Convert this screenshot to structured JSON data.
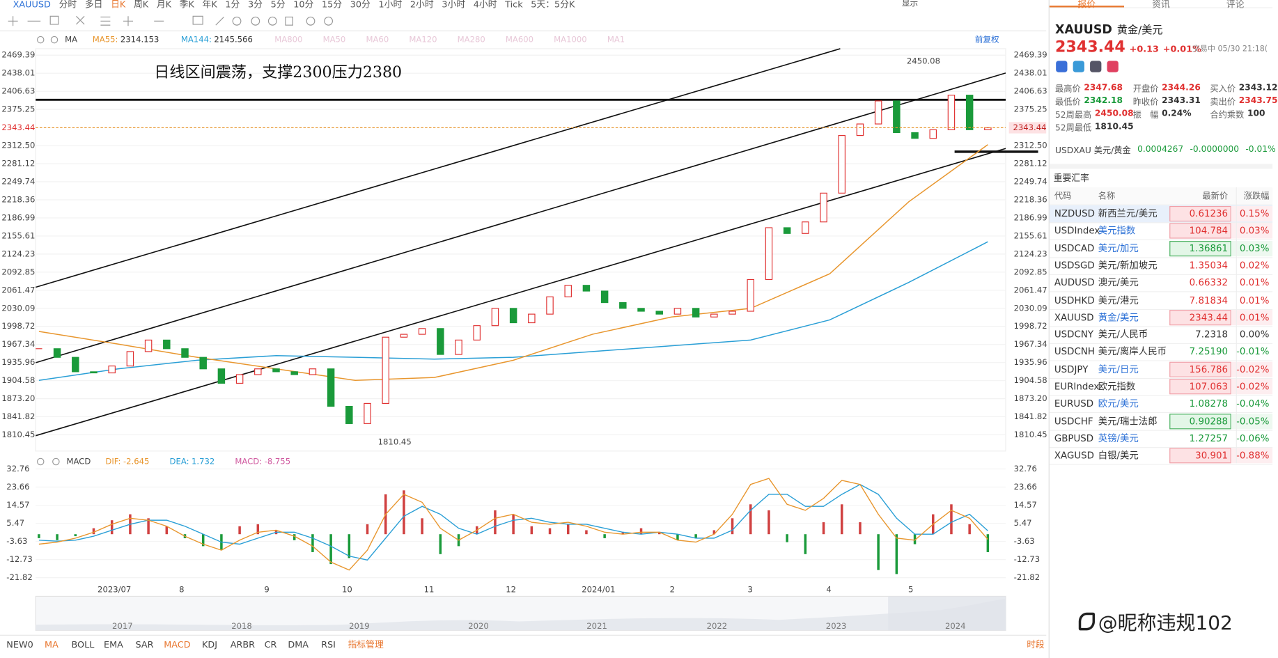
{
  "toolbar": {
    "symbol": "XAUUSD",
    "periods": [
      "分时",
      "多日",
      "日K",
      "周K",
      "月K",
      "季K",
      "年K",
      "1分",
      "3分",
      "5分",
      "10分",
      "15分",
      "30分",
      "1小时",
      "2小时",
      "3小时",
      "4小时",
      "Tick"
    ],
    "active_period": 2,
    "speed": "5天：5分K",
    "display": "显示"
  },
  "chart": {
    "ma_label": "MA",
    "ma_active": [
      {
        "name": "MA55:",
        "value": "2314.153",
        "color": "#e8962e"
      },
      {
        "name": "MA144:",
        "value": "2145.566",
        "color": "#2a9fd6"
      }
    ],
    "ma_inactive": [
      "MA800",
      "MA50",
      "MA60",
      "MA120",
      "MA280",
      "MA600",
      "MA1000",
      "MA1"
    ],
    "restore": "前复权",
    "annotation": "日线区间震荡，支撑2300压力2380",
    "price_ticks": [
      2469.39,
      2438.01,
      2406.63,
      2375.25,
      {
        "value": 2312.5,
        "label": "2312.50"
      },
      2281.12,
      2249.74,
      2218.36,
      2186.99,
      2155.61,
      2124.23,
      2092.85,
      2061.47,
      2030.09,
      1998.72,
      1967.34,
      1935.96,
      1904.58,
      {
        "value": 1873.2,
        "label": "1873.20"
      },
      1841.82,
      1810.45
    ],
    "current_price": 2343.44,
    "high": 2450.08,
    "low": 1810.45,
    "months": [
      "2023/07",
      "8",
      "9",
      "10",
      "11",
      "12",
      "2024/01",
      "2",
      "3",
      "4",
      "5"
    ],
    "closes": [
      1960,
      1945,
      1920,
      1918,
      1930,
      1955,
      1975,
      1960,
      1945,
      1925,
      1900,
      1915,
      1925,
      1920,
      1915,
      1925,
      1860,
      1830,
      1865,
      1980,
      1985,
      1995,
      1950,
      1975,
      2000,
      2030,
      2005,
      2020,
      2050,
      2070,
      2060,
      2040,
      2030,
      2025,
      2020,
      2030,
      2015,
      2020,
      2025,
      2080,
      2170,
      2160,
      2180,
      2230,
      2330,
      2350,
      2390,
      2335,
      2325,
      2340,
      2400,
      2340,
      2343.44
    ],
    "ma55": [
      1990,
      1968,
      1945,
      1925,
      1905,
      1910,
      1940,
      1985,
      2015,
      2030,
      2090,
      2215,
      2314.15
    ],
    "ma144": [
      1905,
      1925,
      1940,
      1948,
      1945,
      1942,
      1945,
      1955,
      1965,
      1975,
      2010,
      2075,
      2145.57
    ],
    "macd": {
      "label": "MACD",
      "items": [
        {
          "name": "DIF:",
          "value": "-2.645",
          "color": "#e8962e"
        },
        {
          "name": "DEA:",
          "value": "1.732",
          "color": "#2a9fd6"
        },
        {
          "name": "MACD:",
          "value": "-8.755",
          "color": "#d05aa0"
        }
      ],
      "ticks": [
        32.76,
        23.66,
        14.57,
        5.47,
        -3.63,
        -12.73,
        -21.82
      ],
      "hist": [
        -2,
        -3,
        -1,
        3,
        7,
        10,
        8,
        4,
        -2,
        -6,
        -8,
        4,
        5,
        2,
        -3,
        -9,
        -15,
        -12,
        5,
        20,
        22,
        8,
        -10,
        -6,
        4,
        12,
        10,
        4,
        3,
        5,
        2,
        -2,
        1,
        3,
        1,
        -3,
        -2,
        2,
        8,
        15,
        12,
        -4,
        -10,
        6,
        15,
        6,
        -18,
        -20,
        -5,
        10,
        15,
        5,
        -9
      ],
      "dif": [
        -5,
        -4,
        -2,
        1,
        5,
        8,
        7,
        4,
        -1,
        -5,
        -8,
        -3,
        1,
        2,
        -1,
        -6,
        -14,
        -18,
        -8,
        10,
        20,
        16,
        3,
        -3,
        2,
        8,
        10,
        6,
        5,
        6,
        4,
        1,
        0,
        1,
        1,
        -3,
        -4,
        0,
        10,
        25,
        28,
        15,
        12,
        18,
        27,
        25,
        10,
        -2,
        -3,
        5,
        12,
        8,
        -2.6
      ],
      "dea": [
        -3,
        -3.5,
        -3,
        -1,
        2,
        5,
        7,
        7,
        4,
        0,
        -4,
        -5,
        -2,
        1,
        1,
        -2,
        -6,
        -11,
        -13,
        -2,
        9,
        14,
        10,
        3,
        0,
        4,
        7,
        8,
        6,
        5,
        5,
        3,
        1,
        0,
        1,
        0,
        -2,
        -2,
        2,
        12,
        20,
        20,
        14,
        14,
        20,
        25,
        20,
        8,
        0,
        0,
        6,
        10,
        1.73
      ]
    },
    "years": [
      "2017",
      "2018",
      "2019",
      "2020",
      "2021",
      "2022",
      "2023",
      "2024"
    ],
    "indicators": [
      "NEW0",
      "MA",
      "BOLL",
      "EMA",
      "SAR",
      "MACD",
      "KDJ",
      "ARBR",
      "CR",
      "DMA",
      "RSI"
    ],
    "active_indicators": [
      1,
      5
    ],
    "manage": "指标管理",
    "session": "时段"
  },
  "quote": {
    "tabs": [
      "报价",
      "资讯",
      "评论"
    ],
    "symbol": "XAUUSD",
    "name": "黄金/美元",
    "price": "2343.44",
    "change": "+0.13",
    "pct": "+0.01%",
    "status": "交易中 05/30 21:18(",
    "stats": [
      [
        {
          "label": "最高价",
          "value": "2347.68",
          "tone": "up"
        },
        {
          "label": "开盘价",
          "value": "2344.26",
          "tone": "up"
        },
        {
          "label": "买入价",
          "value": "2343.12",
          "tone": "flat"
        }
      ],
      [
        {
          "label": "最低价",
          "value": "2342.18",
          "tone": "down"
        },
        {
          "label": "昨收价",
          "value": "2343.31",
          "tone": "flat"
        },
        {
          "label": "卖出价",
          "value": "2343.75",
          "tone": "up"
        }
      ],
      [
        {
          "label": "52周最高",
          "value": "2450.08",
          "tone": "up"
        },
        {
          "label": "振　幅",
          "value": "0.24%",
          "tone": "flat"
        },
        {
          "label": "合约乘数",
          "value": "100",
          "tone": "flat"
        }
      ],
      [
        {
          "label": "52周最低",
          "value": "1810.45",
          "tone": "flat"
        }
      ]
    ],
    "cross": {
      "name": "USDXAU 美元/黄金",
      "price": "0.0004267",
      "change": "-0.0000000",
      "pct": "-0.01%"
    }
  },
  "rates": {
    "title": "重要汇率",
    "headers": [
      "代码",
      "名称",
      "最新价",
      "涨跌幅"
    ],
    "rows": [
      [
        "NZDUSD",
        "新西兰元/美元",
        "0.61236",
        "0.15%"
      ],
      [
        "USDIndex",
        "美元指数",
        "104.784",
        "0.03%"
      ],
      [
        "USDCAD",
        "美元/加元",
        "1.36861",
        "0.03%"
      ],
      [
        "USDSGD",
        "美元/新加坡元",
        "1.35034",
        "0.02%"
      ],
      [
        "AUDUSD",
        "澳元/美元",
        "0.66332",
        "0.01%"
      ],
      [
        "USDHKD",
        "美元/港元",
        "7.81834",
        "0.01%"
      ],
      [
        "XAUUSD",
        "黄金/美元",
        "2343.44",
        "0.01%"
      ],
      [
        "USDCNY",
        "美元/人民币",
        "7.2318",
        "0.00%"
      ],
      [
        "USDCNH",
        "美元/离岸人民币",
        "7.25190",
        "-0.01%"
      ],
      [
        "USDJPY",
        "美元/日元",
        "156.786",
        "-0.02%"
      ],
      [
        "EURIndex",
        "欧元指数",
        "107.063",
        "-0.02%"
      ],
      [
        "EURUSD",
        "欧元/美元",
        "1.08278",
        "-0.04%"
      ],
      [
        "USDCHF",
        "美元/瑞士法郎",
        "0.90288",
        "-0.05%"
      ],
      [
        "GBPUSD",
        "英镑/美元",
        "1.27257",
        "-0.06%"
      ],
      [
        "XAGUSD",
        "白银/美元",
        "30.901",
        "-0.88%"
      ]
    ],
    "tones": [
      "up",
      "up",
      "down",
      "up",
      "up",
      "up",
      "up",
      "flat",
      "down",
      "up",
      "up",
      "down",
      "down",
      "down",
      "up"
    ],
    "flash": [
      true,
      true,
      true,
      false,
      false,
      false,
      true,
      false,
      false,
      true,
      true,
      false,
      true,
      false,
      true
    ],
    "link": [
      false,
      true,
      true,
      false,
      false,
      false,
      true,
      false,
      false,
      true,
      false,
      true,
      false,
      true,
      false
    ]
  },
  "watermark": "@昵称违规102"
}
